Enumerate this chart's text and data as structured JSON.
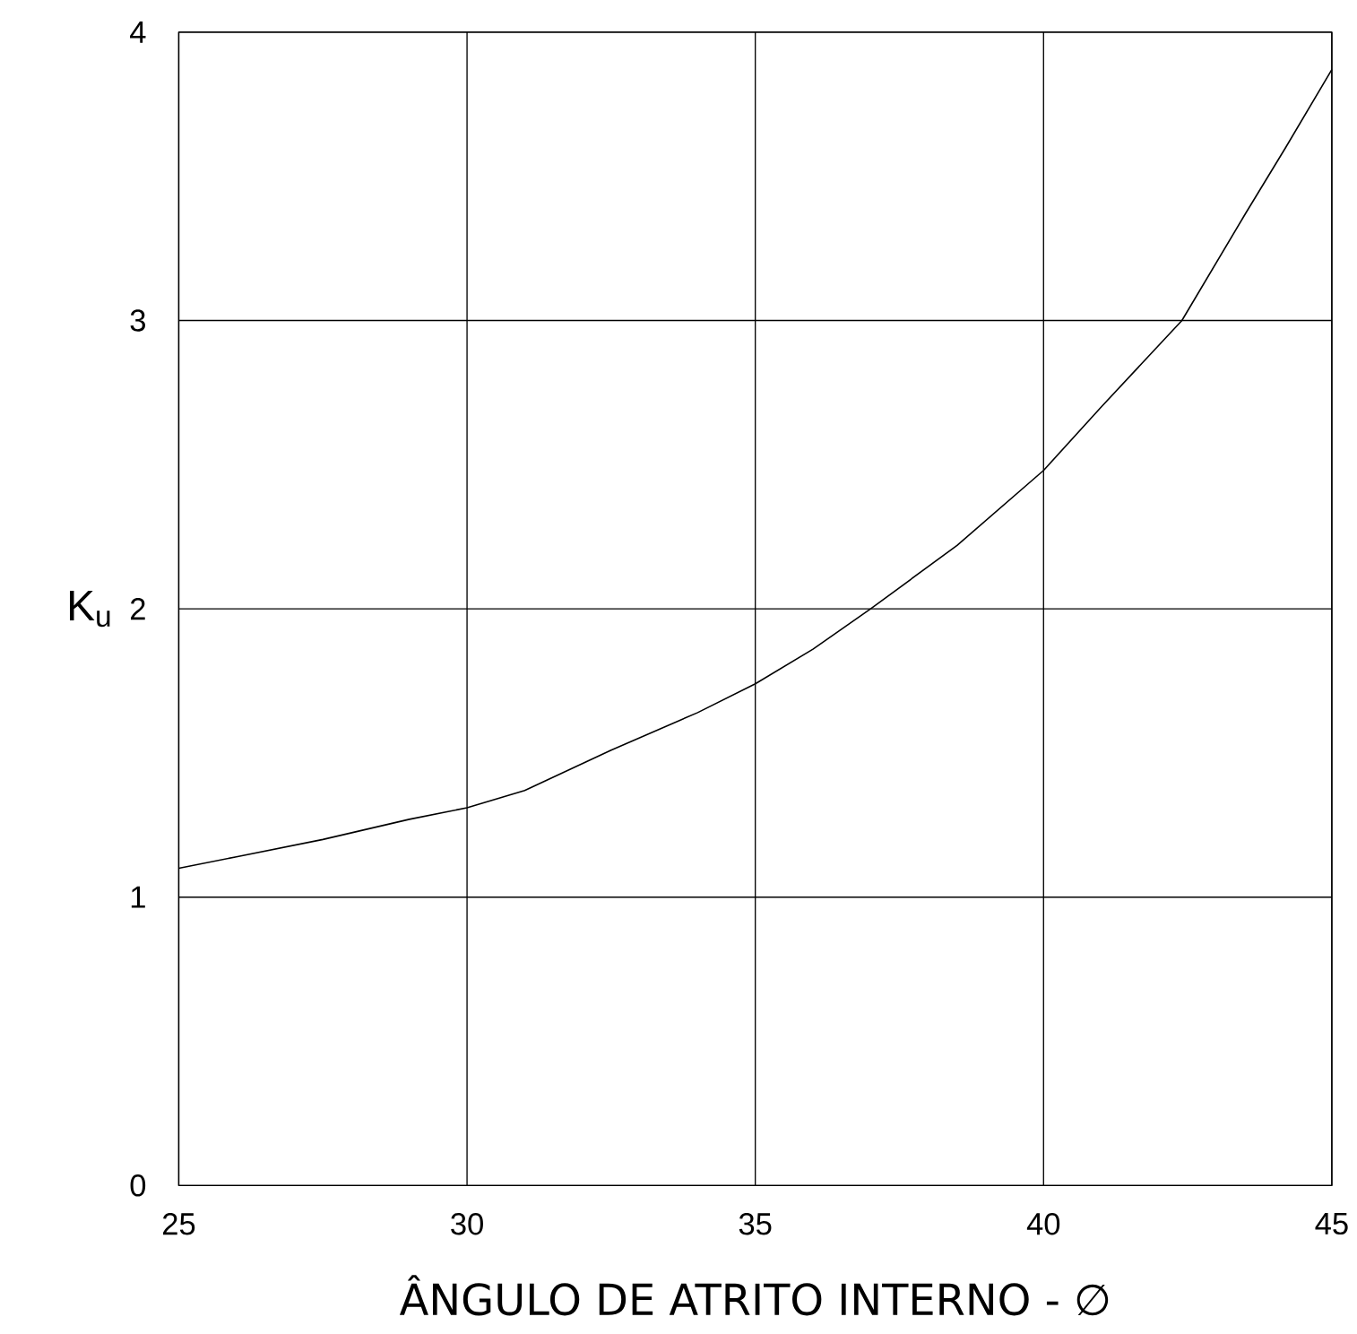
{
  "chart_data": {
    "type": "line",
    "xlabel": "ÂNGULO DE ATRITO INTERNO - ∅",
    "ylabel": "K$_{u}$",
    "x": [
      25,
      26,
      27.5,
      29,
      30,
      31,
      32.5,
      34,
      35,
      36,
      37,
      38.5,
      40,
      41,
      42.4,
      43.5,
      44.2,
      45
    ],
    "series": [
      {
        "color": "#000000",
        "values": [
          1.1,
          1.14,
          1.2,
          1.27,
          1.31,
          1.37,
          1.51,
          1.64,
          1.74,
          1.86,
          2.0,
          2.22,
          2.48,
          2.7,
          3.0,
          3.37,
          3.6,
          3.87
        ]
      }
    ],
    "xlim": [
      25,
      45
    ],
    "ylim": [
      0,
      4
    ],
    "xticks": [
      25,
      30,
      35,
      40,
      45
    ],
    "yticks": [
      0,
      1,
      2,
      3,
      4
    ],
    "grid": true,
    "marker": "none",
    "line_style": "solid"
  }
}
